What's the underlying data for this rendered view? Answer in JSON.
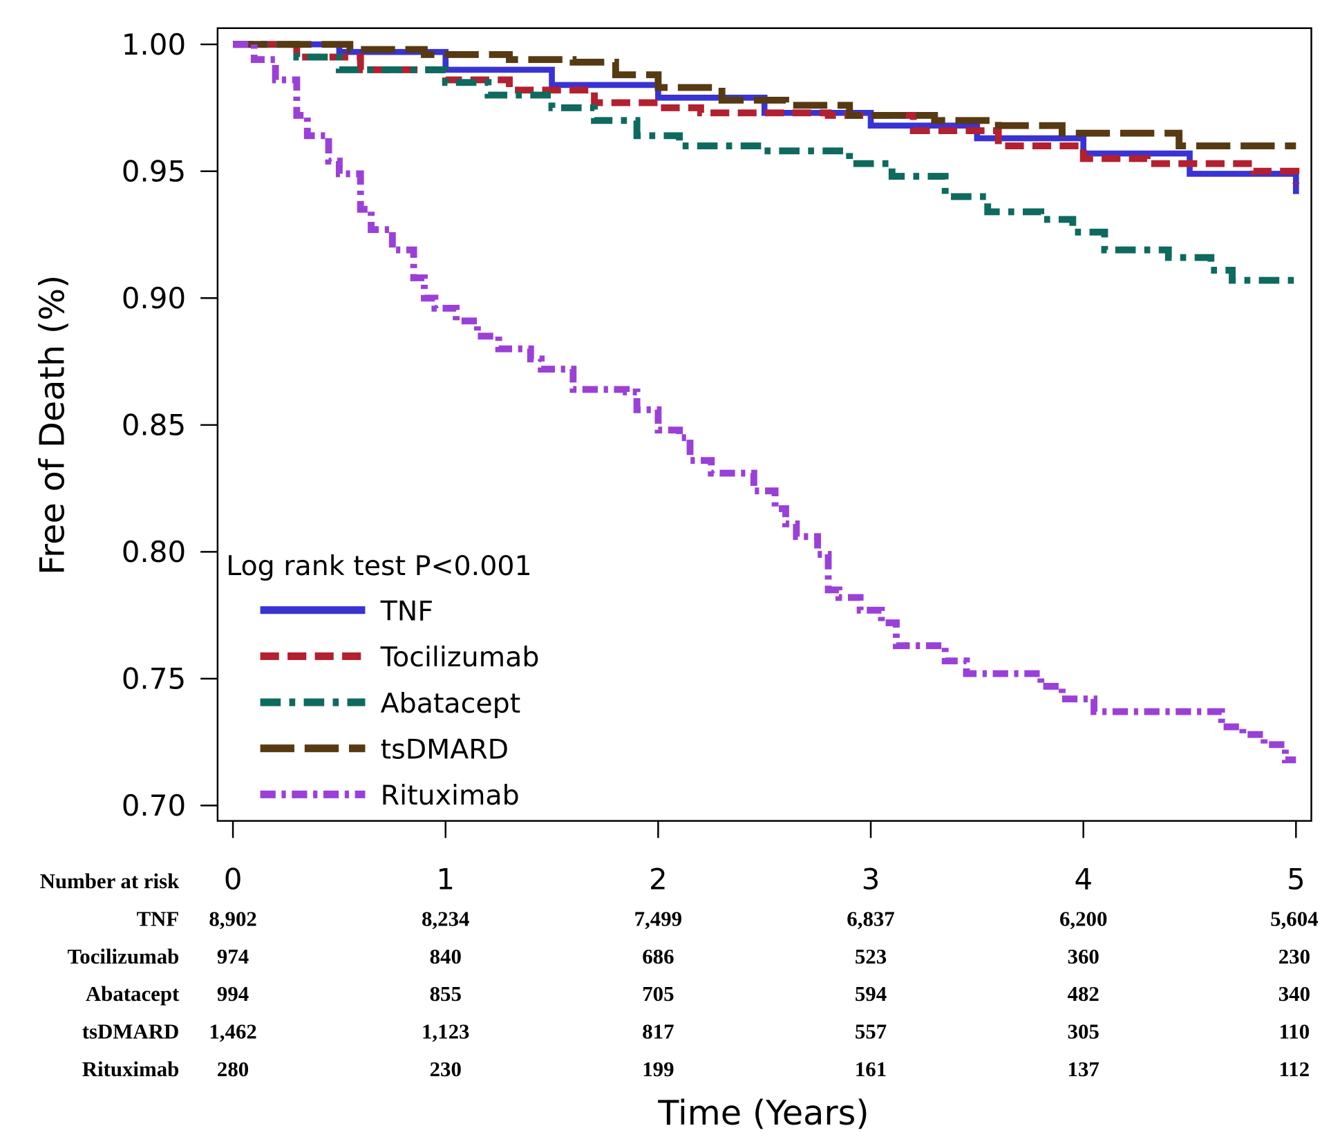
{
  "chart_data": {
    "type": "line",
    "title": "",
    "xlabel": "Time (Years)",
    "ylabel": "Free of Death (%)",
    "xlim": [
      0,
      5
    ],
    "ylim": [
      0.7,
      1.0
    ],
    "x_ticks": [
      "0",
      "1",
      "2",
      "3",
      "4",
      "5"
    ],
    "y_ticks": [
      "0.70",
      "0.75",
      "0.80",
      "0.85",
      "0.90",
      "0.95",
      "1.00"
    ],
    "grid": false,
    "annotation": "Log rank test P<0.001",
    "legend_position": "bottom-left",
    "step": true,
    "series": [
      {
        "name": "TNF",
        "color": "#3a33d4",
        "style": "solid",
        "x": [
          0,
          0.5,
          1,
          1.5,
          2,
          2.5,
          3,
          3.5,
          4,
          4.5,
          5
        ],
        "y": [
          1.0,
          0.997,
          0.99,
          0.984,
          0.979,
          0.973,
          0.968,
          0.963,
          0.957,
          0.949,
          0.941
        ]
      },
      {
        "name": "Tocilizumab",
        "color": "#b3202f",
        "style": "dashed",
        "x": [
          0,
          0.3,
          0.6,
          1,
          1.3,
          1.7,
          2,
          2.2,
          2.8,
          3.2,
          3.6,
          4,
          4.3,
          4.8,
          5
        ],
        "y": [
          1.0,
          0.995,
          0.99,
          0.986,
          0.982,
          0.977,
          0.975,
          0.973,
          0.972,
          0.966,
          0.96,
          0.955,
          0.953,
          0.95,
          0.945
        ]
      },
      {
        "name": "Abatacept",
        "color": "#0e6a5e",
        "style": "dash-dot",
        "x": [
          0,
          0.3,
          0.5,
          1,
          1.2,
          1.5,
          1.7,
          1.9,
          2.1,
          2.5,
          2.9,
          3.1,
          3.35,
          3.55,
          3.8,
          3.95,
          4.1,
          4.4,
          4.6,
          4.7,
          5
        ],
        "y": [
          1.0,
          0.995,
          0.99,
          0.985,
          0.98,
          0.975,
          0.97,
          0.964,
          0.96,
          0.958,
          0.953,
          0.948,
          0.94,
          0.934,
          0.931,
          0.926,
          0.919,
          0.916,
          0.911,
          0.907,
          0.907
        ]
      },
      {
        "name": "tsDMARD",
        "color": "#573a12",
        "style": "long-dash",
        "x": [
          0,
          0.55,
          0.9,
          1.3,
          1.6,
          1.8,
          2.0,
          2.3,
          2.6,
          2.9,
          3.3,
          3.6,
          3.9,
          4.45,
          5
        ],
        "y": [
          1.0,
          0.998,
          0.996,
          0.994,
          0.993,
          0.988,
          0.983,
          0.978,
          0.976,
          0.972,
          0.97,
          0.968,
          0.965,
          0.96,
          0.96
        ]
      },
      {
        "name": "Rituximab",
        "color": "#9a40d8",
        "style": "dash-dot-short",
        "x": [
          0,
          0.1,
          0.2,
          0.3,
          0.35,
          0.45,
          0.5,
          0.6,
          0.65,
          0.75,
          0.85,
          0.9,
          0.95,
          1.05,
          1.15,
          1.25,
          1.4,
          1.45,
          1.6,
          1.85,
          1.9,
          2.0,
          2.1,
          2.15,
          2.25,
          2.45,
          2.55,
          2.6,
          2.65,
          2.75,
          2.8,
          2.85,
          2.95,
          3.05,
          3.12,
          3.35,
          3.45,
          3.8,
          3.9,
          4.05,
          4.65,
          4.75,
          4.85,
          4.95,
          5
        ],
        "y": [
          1.0,
          0.994,
          0.986,
          0.972,
          0.964,
          0.954,
          0.949,
          0.935,
          0.927,
          0.919,
          0.908,
          0.9,
          0.896,
          0.891,
          0.885,
          0.88,
          0.876,
          0.872,
          0.864,
          0.863,
          0.856,
          0.848,
          0.845,
          0.836,
          0.831,
          0.824,
          0.817,
          0.811,
          0.806,
          0.799,
          0.785,
          0.782,
          0.777,
          0.772,
          0.763,
          0.757,
          0.752,
          0.747,
          0.742,
          0.737,
          0.731,
          0.728,
          0.724,
          0.718,
          0.718
        ]
      }
    ],
    "risk_table": {
      "title": "Number at risk",
      "rows": [
        {
          "label": "TNF",
          "values": [
            "8,902",
            "8,234",
            "7,499",
            "6,837",
            "6,200",
            "5,604"
          ]
        },
        {
          "label": "Tocilizumab",
          "values": [
            "974",
            "840",
            "686",
            "523",
            "360",
            "230"
          ]
        },
        {
          "label": "Abatacept",
          "values": [
            "994",
            "855",
            "705",
            "594",
            "482",
            "340"
          ]
        },
        {
          "label": "tsDMARD",
          "values": [
            "1,462",
            "1,123",
            "817",
            "557",
            "305",
            "110"
          ]
        },
        {
          "label": "Rituximab",
          "values": [
            "280",
            "230",
            "199",
            "161",
            "137",
            "112"
          ]
        }
      ]
    }
  }
}
